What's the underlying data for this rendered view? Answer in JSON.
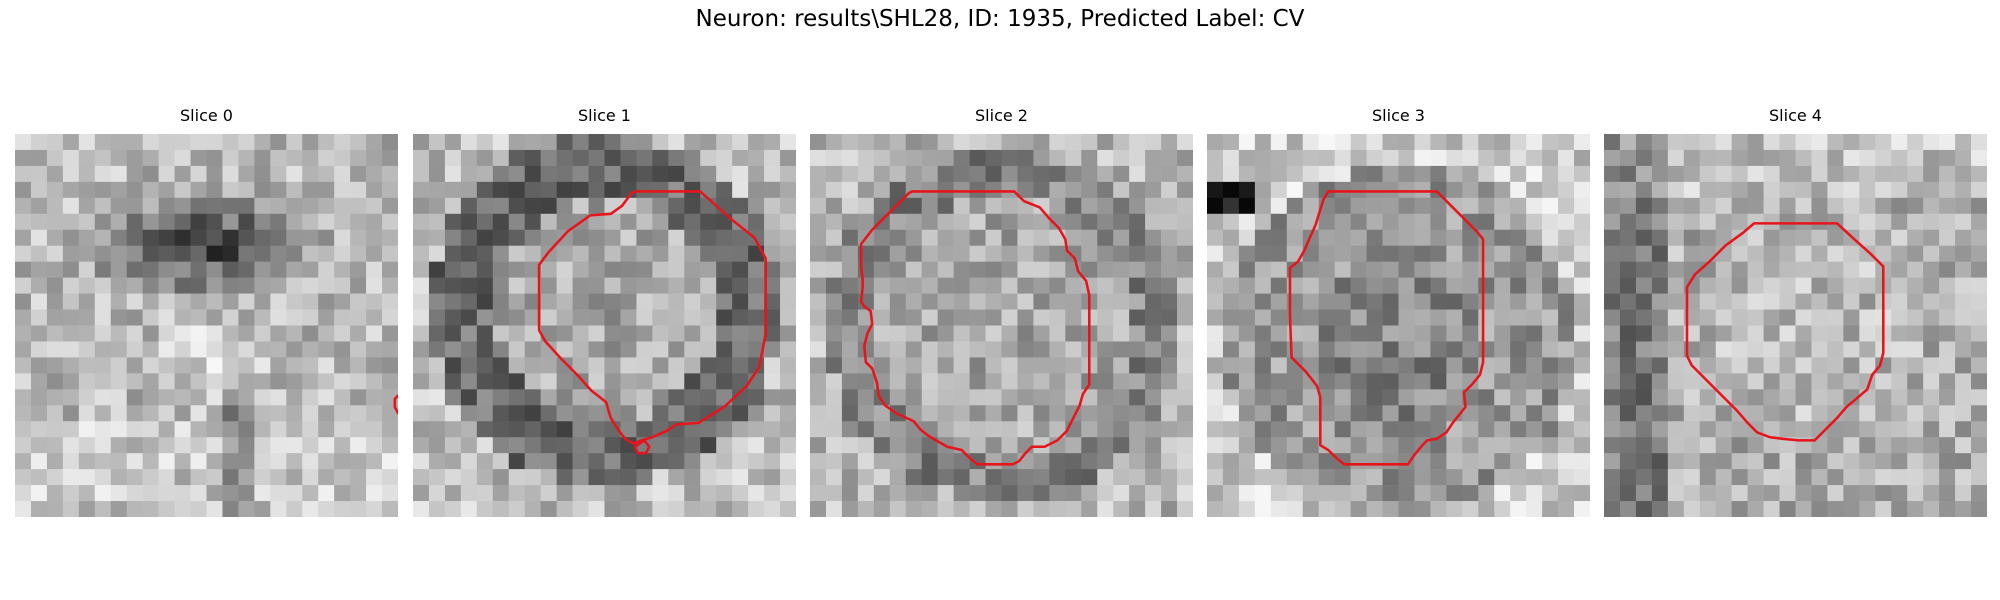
{
  "figure": {
    "title": "Neuron: results\\SHL28, ID: 1935, Predicted Label: CV",
    "contour_color": "#e8141b",
    "panels": [
      {
        "title": "Slice 0",
        "contours": [
          [
            [
              26.1,
              13.7
            ],
            [
              26.6,
              14.2
            ],
            [
              26.6,
              14.9
            ],
            [
              25.9,
              15.6
            ],
            [
              25.9,
              16.3
            ],
            [
              25.2,
              17
            ],
            [
              24.9,
              17.5
            ],
            [
              24.5,
              17.6
            ],
            [
              24,
              17.5
            ],
            [
              23.8,
              17.1
            ],
            [
              23.8,
              16.6
            ],
            [
              24.5,
              15.9
            ],
            [
              25.2,
              15.2
            ],
            [
              25.6,
              14.5
            ],
            [
              25.8,
              13.9
            ]
          ]
        ]
      },
      {
        "title": "Slice 1",
        "contours": [
          [
            [
              14,
              3.6
            ],
            [
              18,
              3.6
            ],
            [
              19.9,
              5.3
            ],
            [
              21.4,
              6.5
            ],
            [
              22.1,
              7.8
            ],
            [
              22.1,
              9.6
            ],
            [
              22.1,
              12.5
            ],
            [
              21.7,
              14.6
            ],
            [
              20.9,
              15.8
            ],
            [
              19.5,
              17.1
            ],
            [
              17.9,
              18.1
            ],
            [
              16.5,
              18.2
            ],
            [
              15.9,
              18.6
            ],
            [
              15,
              19
            ],
            [
              14.3,
              19.2
            ],
            [
              13.8,
              19.4
            ],
            [
              13.3,
              19.1
            ],
            [
              12.9,
              18.6
            ],
            [
              12.4,
              17.8
            ],
            [
              12.3,
              17.5
            ],
            [
              12.1,
              16.8
            ],
            [
              11.2,
              16.1
            ],
            [
              10.3,
              15.1
            ],
            [
              9.3,
              14.1
            ],
            [
              8.3,
              13
            ],
            [
              7.9,
              12.3
            ],
            [
              7.9,
              10
            ],
            [
              7.9,
              8.2
            ],
            [
              8.5,
              7.4
            ],
            [
              9.7,
              6.1
            ],
            [
              11.1,
              5.1
            ],
            [
              12.4,
              5
            ],
            [
              13.1,
              4.5
            ],
            [
              13.7,
              3.7
            ]
          ],
          [
            [
              14.5,
              19.2
            ],
            [
              14.8,
              19.6
            ],
            [
              14.6,
              20
            ],
            [
              14.1,
              20
            ],
            [
              13.9,
              19.6
            ]
          ]
        ]
      },
      {
        "title": "Slice 2",
        "contours": [
          [
            [
              6.4,
              3.6
            ],
            [
              12.8,
              3.6
            ],
            [
              13.4,
              4.2
            ],
            [
              14.4,
              4.6
            ],
            [
              15,
              5.3
            ],
            [
              15.6,
              5.9
            ],
            [
              16,
              6.6
            ],
            [
              16.1,
              7.3
            ],
            [
              16.6,
              7.8
            ],
            [
              16.8,
              8.6
            ],
            [
              17.3,
              9.2
            ],
            [
              17.5,
              10.1
            ],
            [
              17.5,
              12.5
            ],
            [
              17.5,
              14.3
            ],
            [
              17.5,
              15.7
            ],
            [
              17.1,
              16.3
            ],
            [
              16.9,
              17
            ],
            [
              16.5,
              17.8
            ],
            [
              16.1,
              18.6
            ],
            [
              15.5,
              19.2
            ],
            [
              14.7,
              19.6
            ],
            [
              13.9,
              19.6
            ],
            [
              13.5,
              20
            ],
            [
              13.1,
              20.5
            ],
            [
              12.7,
              20.7
            ],
            [
              10.5,
              20.7
            ],
            [
              10,
              20.3
            ],
            [
              9.5,
              19.8
            ],
            [
              8.6,
              19.6
            ],
            [
              7.9,
              19.2
            ],
            [
              7.4,
              18.9
            ],
            [
              6.9,
              18.5
            ],
            [
              6.5,
              18
            ],
            [
              5.4,
              17.5
            ],
            [
              4.7,
              17
            ],
            [
              4.3,
              16.4
            ],
            [
              4.2,
              15.6
            ],
            [
              3.9,
              14.7
            ],
            [
              3.5,
              14.3
            ],
            [
              3.4,
              13.3
            ],
            [
              3.6,
              12.5
            ],
            [
              3.9,
              11.9
            ],
            [
              3.8,
              11.1
            ],
            [
              3.4,
              10.8
            ],
            [
              3.2,
              10.5
            ],
            [
              3.3,
              9.6
            ],
            [
              3.3,
              9.1
            ],
            [
              3.2,
              8.3
            ],
            [
              3.2,
              6.9
            ],
            [
              3.9,
              6
            ],
            [
              4.6,
              5.3
            ],
            [
              5.6,
              4.3
            ],
            [
              6.2,
              3.7
            ]
          ]
        ]
      },
      {
        "title": "Slice 3",
        "contours": [
          [
            [
              7.6,
              3.6
            ],
            [
              14.4,
              3.6
            ],
            [
              15.8,
              5
            ],
            [
              16.9,
              6.1
            ],
            [
              17.3,
              6.6
            ],
            [
              17.3,
              9.3
            ],
            [
              17.3,
              12
            ],
            [
              17.3,
              14.3
            ],
            [
              17.1,
              15.1
            ],
            [
              16.6,
              15.7
            ],
            [
              16.1,
              16.2
            ],
            [
              16.2,
              17.1
            ],
            [
              15.8,
              17.6
            ],
            [
              15.4,
              18.1
            ],
            [
              15,
              18.7
            ],
            [
              14.4,
              19.1
            ],
            [
              13.8,
              19.2
            ],
            [
              13.5,
              19.5
            ],
            [
              13,
              20.1
            ],
            [
              12.6,
              20.7
            ],
            [
              10,
              20.7
            ],
            [
              8.6,
              20.7
            ],
            [
              8.1,
              20.3
            ],
            [
              7.6,
              19.8
            ],
            [
              7.1,
              19.5
            ],
            [
              7.1,
              16.5
            ],
            [
              6.9,
              15.8
            ],
            [
              6.2,
              14.9
            ],
            [
              5.3,
              14
            ],
            [
              5.2,
              11.4
            ],
            [
              5.2,
              8.4
            ],
            [
              5.7,
              8
            ],
            [
              6.1,
              7.3
            ],
            [
              6.4,
              6.6
            ],
            [
              6.8,
              5.7
            ],
            [
              7.3,
              4.1
            ]
          ]
        ]
      },
      {
        "title": "Slice 4",
        "contours": [
          [
            [
              12.6,
              5.6
            ],
            [
              14.6,
              5.6
            ],
            [
              15.8,
              6.7
            ],
            [
              16.7,
              7.5
            ],
            [
              17.3,
              8.1
            ],
            [
              17.5,
              8.3
            ],
            [
              17.5,
              11.2
            ],
            [
              17.5,
              13.7
            ],
            [
              17.3,
              14.5
            ],
            [
              16.8,
              15.1
            ],
            [
              16.5,
              16
            ],
            [
              15.8,
              16.6
            ],
            [
              15.2,
              17.1
            ],
            [
              14.6,
              17.8
            ],
            [
              13.2,
              19.2
            ],
            [
              12.2,
              19.2
            ],
            [
              11.2,
              19.1
            ],
            [
              10.4,
              19
            ],
            [
              9.6,
              18.7
            ],
            [
              9,
              18.1
            ],
            [
              8.3,
              17.3
            ],
            [
              7.4,
              16.4
            ],
            [
              6.5,
              15.5
            ],
            [
              5.5,
              14.5
            ],
            [
              5.2,
              13.9
            ],
            [
              5.2,
              11.3
            ],
            [
              5.2,
              9.6
            ],
            [
              5.7,
              8.8
            ],
            [
              6.6,
              8
            ],
            [
              7.6,
              7
            ],
            [
              8.7,
              6.2
            ],
            [
              9.4,
              5.6
            ]
          ]
        ]
      }
    ]
  }
}
